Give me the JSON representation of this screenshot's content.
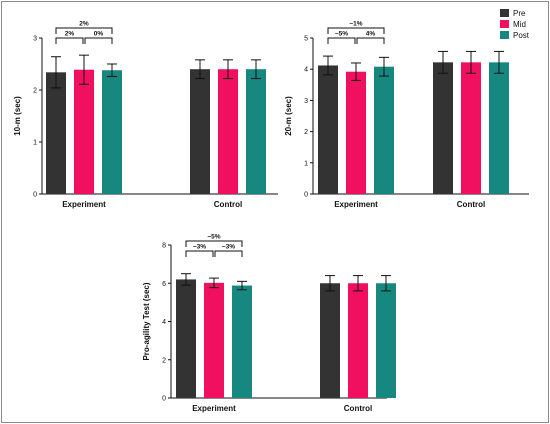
{
  "chart_data": [
    {
      "type": "bar",
      "ylabel": "10-m (sec)",
      "categories": [
        "Experiment",
        "Control"
      ],
      "ylim": [
        0,
        3
      ],
      "yticks": [
        "0",
        "1",
        "2",
        "3"
      ],
      "series": [
        {
          "name": "Pre",
          "values": [
            2.34,
            2.4
          ],
          "errors": [
            0.3,
            0.18
          ]
        },
        {
          "name": "Mid",
          "values": [
            2.39,
            2.4
          ],
          "errors": [
            0.28,
            0.18
          ]
        },
        {
          "name": "Post",
          "values": [
            2.38,
            2.4
          ],
          "errors": [
            0.12,
            0.18
          ]
        }
      ],
      "annotations": [
        {
          "text": "2%",
          "from": "Pre",
          "to": "Post"
        },
        {
          "text": "2%",
          "from": "Pre",
          "to": "Mid"
        },
        {
          "text": "0%",
          "from": "Mid",
          "to": "Post"
        }
      ]
    },
    {
      "type": "bar",
      "ylabel": "20-m (sec)",
      "categories": [
        "Experiment",
        "Control"
      ],
      "ylim": [
        0,
        5
      ],
      "yticks": [
        "0",
        "1",
        "2",
        "3",
        "4",
        "5"
      ],
      "series": [
        {
          "name": "Pre",
          "values": [
            4.12,
            4.22
          ],
          "errors": [
            0.3,
            0.35
          ]
        },
        {
          "name": "Mid",
          "values": [
            3.92,
            4.22
          ],
          "errors": [
            0.28,
            0.35
          ]
        },
        {
          "name": "Post",
          "values": [
            4.08,
            4.22
          ],
          "errors": [
            0.3,
            0.35
          ]
        }
      ],
      "annotations": [
        {
          "text": "−1%",
          "from": "Pre",
          "to": "Post"
        },
        {
          "text": "−5%",
          "from": "Pre",
          "to": "Mid"
        },
        {
          "text": "4%",
          "from": "Mid",
          "to": "Post"
        }
      ]
    },
    {
      "type": "bar",
      "ylabel": "Pro-agility Test (sec)",
      "categories": [
        "Experiment",
        "Control"
      ],
      "ylim": [
        0,
        8
      ],
      "yticks": [
        "0",
        "2",
        "4",
        "6",
        "8"
      ],
      "series": [
        {
          "name": "Pre",
          "values": [
            6.2,
            6.0
          ],
          "errors": [
            0.3,
            0.4
          ]
        },
        {
          "name": "Mid",
          "values": [
            6.02,
            6.0
          ],
          "errors": [
            0.25,
            0.4
          ]
        },
        {
          "name": "Post",
          "values": [
            5.88,
            6.0
          ],
          "errors": [
            0.22,
            0.4
          ]
        }
      ],
      "annotations": [
        {
          "text": "−5%",
          "from": "Pre",
          "to": "Post"
        },
        {
          "text": "−3%",
          "from": "Pre",
          "to": "Mid"
        },
        {
          "text": "−3%",
          "from": "Mid",
          "to": "Post"
        }
      ]
    }
  ],
  "legend": {
    "items": [
      {
        "label": "Pre",
        "color": "#333333"
      },
      {
        "label": "Mid",
        "color": "#f0105f"
      },
      {
        "label": "Post",
        "color": "#168880"
      }
    ],
    "placement": "top-right"
  },
  "colors": {
    "Pre": "#333333",
    "Mid": "#f0105f",
    "Post": "#168880"
  }
}
